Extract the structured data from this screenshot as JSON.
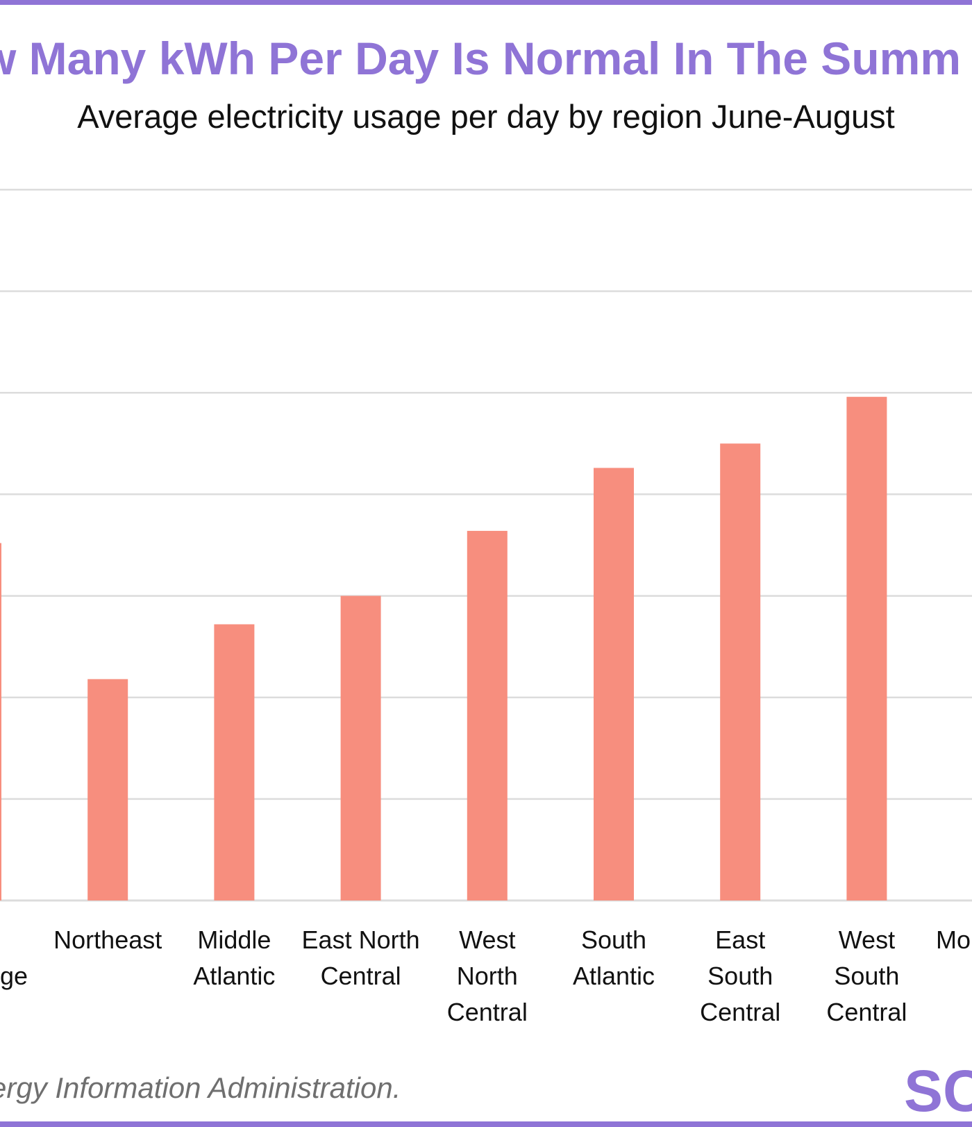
{
  "header": {
    "title": "w Many kWh Per Day Is Normal In The Summ",
    "subtitle": "Average electricity usage per day by region June-August"
  },
  "footer": {
    "source": "ergy Information Administration.",
    "logo_text": "SC"
  },
  "colors": {
    "accent": "#8f74d6",
    "bar": "#f78e7e",
    "grid": "#dcdcdc",
    "text": "#111111"
  },
  "chart_data": {
    "type": "bar",
    "title": "w Many kWh Per Day Is Normal In The Summ",
    "subtitle": "Average electricity usage per day by region June-August",
    "xlabel": "",
    "ylabel": "",
    "categories": [
      [
        "ge"
      ],
      [
        "Northeast"
      ],
      [
        "Middle",
        "Atlantic"
      ],
      [
        "East North",
        "Central"
      ],
      [
        "West",
        "North",
        "Central"
      ],
      [
        "South",
        "Atlantic"
      ],
      [
        "East",
        "South",
        "Central"
      ],
      [
        "West",
        "South",
        "Central"
      ],
      [
        "Mo"
      ]
    ],
    "values": [
      17.6,
      10.9,
      13.6,
      15.0,
      18.2,
      21.3,
      22.5,
      24.8,
      null
    ],
    "ylim": [
      0,
      35
    ],
    "grid": true,
    "legend": "none"
  }
}
